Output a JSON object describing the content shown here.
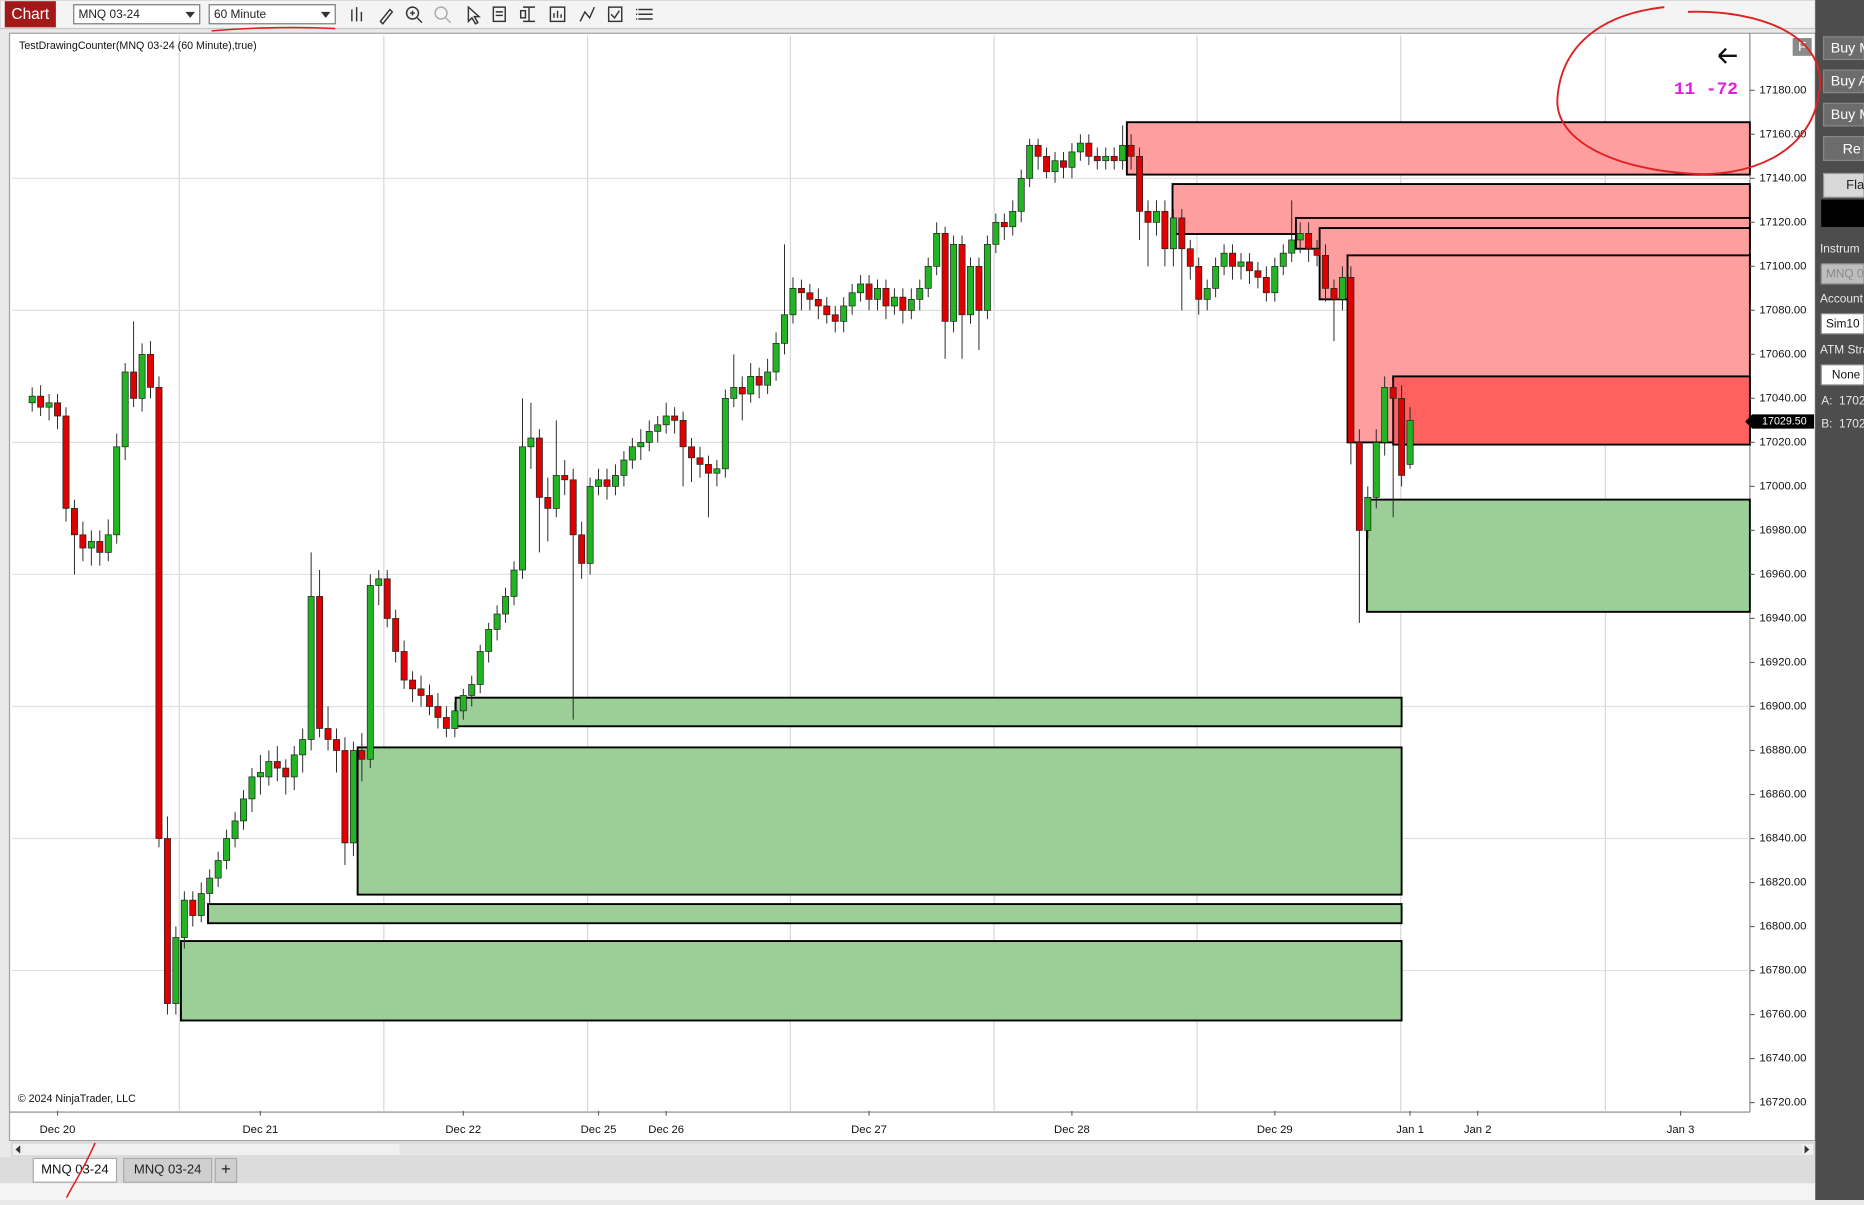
{
  "toolbar": {
    "chart_button": "Chart",
    "instrument": "MNQ 03-24",
    "interval": "60 Minute"
  },
  "chart_data": {
    "type": "candlestick",
    "title": "TestDrawingCounter(MNQ 03-24 (60 Minute),true)",
    "copyright": "© 2024 NinjaTrader, LLC",
    "counter_text": "11 -72",
    "f_button": "F",
    "up_color": "#22b422",
    "down_color": "#e00000",
    "xlim": [
      -2.4,
      203.2
    ],
    "ylim": [
      16716.22,
      17204.84
    ],
    "xticks": [
      {
        "value": 3,
        "label": "Dec 20"
      },
      {
        "value": 27,
        "label": "Dec 21"
      },
      {
        "value": 51,
        "label": "Dec 22"
      },
      {
        "value": 67,
        "label": "Dec 25"
      },
      {
        "value": 75,
        "label": "Dec 26"
      },
      {
        "value": 99,
        "label": "Dec 27"
      },
      {
        "value": 123,
        "label": "Dec 28"
      },
      {
        "value": 147,
        "label": "Dec 29"
      },
      {
        "value": 163,
        "label": "Jan 1"
      },
      {
        "value": 171,
        "label": "Jan 2"
      },
      {
        "value": 195,
        "label": "Jan 3"
      }
    ],
    "yticks": [
      {
        "value": 16720,
        "label": "16720.00"
      },
      {
        "value": 16740,
        "label": "16740.00"
      },
      {
        "value": 16760,
        "label": "16760.00"
      },
      {
        "value": 16780,
        "label": "16780.00"
      },
      {
        "value": 16800,
        "label": "16800.00"
      },
      {
        "value": 16820,
        "label": "16820.00"
      },
      {
        "value": 16840,
        "label": "16840.00"
      },
      {
        "value": 16860,
        "label": "16860.00"
      },
      {
        "value": 16880,
        "label": "16880.00"
      },
      {
        "value": 16900,
        "label": "16900.00"
      },
      {
        "value": 16920,
        "label": "16920.00"
      },
      {
        "value": 16940,
        "label": "16940.00"
      },
      {
        "value": 16960,
        "label": "16960.00"
      },
      {
        "value": 16980,
        "label": "16980.00"
      },
      {
        "value": 17000,
        "label": "17000.00"
      },
      {
        "value": 17020,
        "label": "17020.00"
      },
      {
        "value": 17040,
        "label": "17040.00"
      },
      {
        "value": 17060,
        "label": "17060.00"
      },
      {
        "value": 17080,
        "label": "17080.00"
      },
      {
        "value": 17100,
        "label": "17100.00"
      },
      {
        "value": 17120,
        "label": "17120.00"
      },
      {
        "value": 17140,
        "label": "17140.00"
      },
      {
        "value": 17160,
        "label": "17160.00"
      },
      {
        "value": 17180,
        "label": "17180.00"
      }
    ],
    "grid_x": [
      17.4,
      41.6,
      65.7,
      89.7,
      113.8,
      137.8,
      161.9,
      186.1
    ],
    "grid_y": [
      16780,
      16840,
      16900,
      16960,
      17020,
      17080,
      17140
    ],
    "last_price": {
      "value": 17029.5,
      "label": "17029.50"
    },
    "zones": [
      {
        "x0": 129.5,
        "x1": 203.2,
        "top": 17165.5,
        "bottom": 17141.7,
        "color": "#ff9e9e"
      },
      {
        "x0": 134.9,
        "x1": 203.2,
        "top": 17137.4,
        "bottom": 17114.7,
        "color": "#ff9e9e"
      },
      {
        "x0": 149.5,
        "x1": 203.2,
        "top": 17122,
        "bottom": 17108,
        "color": "#ff9e9e"
      },
      {
        "x0": 152.3,
        "x1": 203.2,
        "top": 17117.4,
        "bottom": 17085,
        "color": "#ff9e9e"
      },
      {
        "x0": 155.6,
        "x1": 203.2,
        "top": 17105,
        "bottom": 17020,
        "color": "#ff9e9e"
      },
      {
        "x0": 161,
        "x1": 203.2,
        "top": 17050,
        "bottom": 17019,
        "color": "#ff6060"
      },
      {
        "x0": 157.9,
        "x1": 203.2,
        "top": 16994,
        "bottom": 16943,
        "color": "#9ccf98"
      },
      {
        "x0": 50.1,
        "x1": 162,
        "top": 16904,
        "bottom": 16891,
        "color": "#9ccf98"
      },
      {
        "x0": 38.5,
        "x1": 162,
        "top": 16881.4,
        "bottom": 16814.5,
        "color": "#9ccf98"
      },
      {
        "x0": 20.8,
        "x1": 162,
        "top": 16810.2,
        "bottom": 16801.5,
        "color": "#9ccf98"
      },
      {
        "x0": 17.6,
        "x1": 162,
        "top": 16793.4,
        "bottom": 16757.3,
        "color": "#9ccf98"
      }
    ],
    "candles": [
      [
        17038,
        17045,
        17034,
        17041
      ],
      [
        17041,
        17046,
        17032,
        17036
      ],
      [
        17036,
        17042,
        17030,
        17038
      ],
      [
        17038,
        17042,
        17026,
        17032
      ],
      [
        17032,
        17036,
        16984,
        16990
      ],
      [
        16990,
        16994,
        16960,
        16978
      ],
      [
        16978,
        16984,
        16966,
        16972
      ],
      [
        16972,
        16980,
        16964,
        16975
      ],
      [
        16975,
        16980,
        16964,
        16970
      ],
      [
        16970,
        16985,
        16966,
        16978
      ],
      [
        16978,
        17024,
        16974,
        17018
      ],
      [
        17018,
        17056,
        17012,
        17052
      ],
      [
        17052,
        17075,
        17036,
        17040
      ],
      [
        17040,
        17065,
        17034,
        17060
      ],
      [
        17060,
        17066,
        17040,
        17045
      ],
      [
        17045,
        17050,
        16836,
        16840
      ],
      [
        16840,
        16850,
        16760,
        16765
      ],
      [
        16765,
        16800,
        16760,
        16795
      ],
      [
        16795,
        16816,
        16790,
        16812
      ],
      [
        16812,
        16816,
        16800,
        16805
      ],
      [
        16805,
        16820,
        16802,
        16815
      ],
      [
        16815,
        16826,
        16810,
        16822
      ],
      [
        16822,
        16834,
        16818,
        16830
      ],
      [
        16830,
        16844,
        16826,
        16840
      ],
      [
        16840,
        16852,
        16836,
        16848
      ],
      [
        16848,
        16862,
        16844,
        16858
      ],
      [
        16858,
        16872,
        16852,
        16868
      ],
      [
        16868,
        16878,
        16860,
        16870
      ],
      [
        16868,
        16880,
        16864,
        16875
      ],
      [
        16875,
        16882,
        16866,
        16872
      ],
      [
        16872,
        16876,
        16860,
        16868
      ],
      [
        16868,
        16882,
        16862,
        16878
      ],
      [
        16878,
        16890,
        16870,
        16885
      ],
      [
        16885,
        16970,
        16880,
        16950
      ],
      [
        16950,
        16962,
        16886,
        16890
      ],
      [
        16890,
        16900,
        16880,
        16885
      ],
      [
        16885,
        16890,
        16870,
        16880
      ],
      [
        16880,
        16886,
        16828,
        16838
      ],
      [
        16838,
        16884,
        16832,
        16880
      ],
      [
        16880,
        16888,
        16866,
        16876
      ],
      [
        16876,
        16960,
        16872,
        16955
      ],
      [
        16955,
        16962,
        16946,
        16958
      ],
      [
        16958,
        16962,
        16936,
        16940
      ],
      [
        16940,
        16944,
        16920,
        16925
      ],
      [
        16925,
        16930,
        16908,
        16912
      ],
      [
        16912,
        16916,
        16902,
        16908
      ],
      [
        16908,
        16914,
        16900,
        16905
      ],
      [
        16905,
        16910,
        16896,
        16900
      ],
      [
        16900,
        16906,
        16890,
        16895
      ],
      [
        16895,
        16900,
        16886,
        16890
      ],
      [
        16890,
        16902,
        16886,
        16898
      ],
      [
        16898,
        16908,
        16894,
        16905
      ],
      [
        16905,
        16914,
        16900,
        16910
      ],
      [
        16910,
        16928,
        16906,
        16925
      ],
      [
        16925,
        16938,
        16920,
        16935
      ],
      [
        16935,
        16946,
        16930,
        16942
      ],
      [
        16942,
        16954,
        16938,
        16950
      ],
      [
        16950,
        16966,
        16946,
        16962
      ],
      [
        16962,
        17040,
        16958,
        17018
      ],
      [
        17018,
        17038,
        17008,
        17022
      ],
      [
        17022,
        17026,
        16970,
        16995
      ],
      [
        16995,
        17004,
        16975,
        16990
      ],
      [
        16990,
        17030,
        16986,
        17005
      ],
      [
        17005,
        17012,
        16996,
        17003
      ],
      [
        17003,
        17008,
        16894,
        16978
      ],
      [
        16978,
        16984,
        16958,
        16965
      ],
      [
        16965,
        17004,
        16960,
        17000
      ],
      [
        17000,
        17008,
        16996,
        17003
      ],
      [
        17003,
        17008,
        16994,
        17000
      ],
      [
        17000,
        17010,
        16996,
        17005
      ],
      [
        17005,
        17016,
        17000,
        17012
      ],
      [
        17012,
        17022,
        17008,
        17018
      ],
      [
        17018,
        17026,
        17012,
        17020
      ],
      [
        17020,
        17030,
        17016,
        17025
      ],
      [
        17025,
        17032,
        17020,
        17028
      ],
      [
        17028,
        17038,
        17024,
        17032
      ],
      [
        17032,
        17036,
        17024,
        17030
      ],
      [
        17030,
        17034,
        17000,
        17018
      ],
      [
        17018,
        17022,
        17002,
        17013
      ],
      [
        17013,
        17018,
        17004,
        17010
      ],
      [
        17010,
        17014,
        16986,
        17006
      ],
      [
        17006,
        17012,
        17000,
        17008
      ],
      [
        17008,
        17044,
        17004,
        17040
      ],
      [
        17040,
        17060,
        17036,
        17045
      ],
      [
        17045,
        17050,
        17030,
        17042
      ],
      [
        17042,
        17056,
        17038,
        17050
      ],
      [
        17050,
        17054,
        17040,
        17046
      ],
      [
        17046,
        17058,
        17042,
        17052
      ],
      [
        17052,
        17070,
        17048,
        17065
      ],
      [
        17065,
        17110,
        17060,
        17078
      ],
      [
        17078,
        17095,
        17074,
        17090
      ],
      [
        17090,
        17094,
        17080,
        17088
      ],
      [
        17088,
        17092,
        17080,
        17085
      ],
      [
        17085,
        17090,
        17076,
        17082
      ],
      [
        17082,
        17086,
        17074,
        17078
      ],
      [
        17078,
        17082,
        17070,
        17075
      ],
      [
        17075,
        17086,
        17070,
        17082
      ],
      [
        17082,
        17092,
        17078,
        17088
      ],
      [
        17088,
        17096,
        17084,
        17092
      ],
      [
        17092,
        17096,
        17080,
        17085
      ],
      [
        17085,
        17094,
        17080,
        17090
      ],
      [
        17090,
        17094,
        17076,
        17082
      ],
      [
        17082,
        17090,
        17078,
        17086
      ],
      [
        17086,
        17090,
        17074,
        17080
      ],
      [
        17080,
        17090,
        17076,
        17085
      ],
      [
        17085,
        17094,
        17080,
        17090
      ],
      [
        17090,
        17104,
        17086,
        17100
      ],
      [
        17100,
        17120,
        17096,
        17115
      ],
      [
        17115,
        17118,
        17058,
        17075
      ],
      [
        17075,
        17114,
        17070,
        17110
      ],
      [
        17110,
        17114,
        17058,
        17078
      ],
      [
        17078,
        17104,
        17074,
        17100
      ],
      [
        17100,
        17104,
        17062,
        17080
      ],
      [
        17080,
        17114,
        17076,
        17110
      ],
      [
        17110,
        17124,
        17106,
        17120
      ],
      [
        17120,
        17124,
        17112,
        17118
      ],
      [
        17118,
        17130,
        17114,
        17125
      ],
      [
        17125,
        17144,
        17120,
        17140
      ],
      [
        17140,
        17158,
        17136,
        17155
      ],
      [
        17155,
        17158,
        17144,
        17150
      ],
      [
        17150,
        17154,
        17140,
        17143
      ],
      [
        17143,
        17152,
        17138,
        17148
      ],
      [
        17148,
        17152,
        17140,
        17145
      ],
      [
        17145,
        17156,
        17140,
        17152
      ],
      [
        17152,
        17160,
        17148,
        17156
      ],
      [
        17156,
        17160,
        17146,
        17150
      ],
      [
        17150,
        17154,
        17144,
        17148
      ],
      [
        17148,
        17154,
        17144,
        17150
      ],
      [
        17150,
        17154,
        17144,
        17148
      ],
      [
        17148,
        17164,
        17144,
        17155
      ],
      [
        17155,
        17160,
        17144,
        17150
      ],
      [
        17150,
        17154,
        17112,
        17125
      ],
      [
        17125,
        17130,
        17100,
        17120
      ],
      [
        17120,
        17130,
        17114,
        17125
      ],
      [
        17125,
        17130,
        17100,
        17108
      ],
      [
        17108,
        17126,
        17100,
        17122
      ],
      [
        17122,
        17126,
        17080,
        17108
      ],
      [
        17108,
        17112,
        17094,
        17100
      ],
      [
        17100,
        17104,
        17078,
        17085
      ],
      [
        17085,
        17094,
        17080,
        17090
      ],
      [
        17090,
        17104,
        17086,
        17100
      ],
      [
        17100,
        17110,
        17096,
        17106
      ],
      [
        17106,
        17110,
        17094,
        17100
      ],
      [
        17100,
        17106,
        17094,
        17102
      ],
      [
        17102,
        17106,
        17092,
        17098
      ],
      [
        17098,
        17102,
        17090,
        17095
      ],
      [
        17095,
        17100,
        17084,
        17088
      ],
      [
        17088,
        17104,
        17084,
        17100
      ],
      [
        17100,
        17110,
        17096,
        17106
      ],
      [
        17106,
        17130,
        17102,
        17112
      ],
      [
        17112,
        17120,
        17106,
        17115
      ],
      [
        17115,
        17120,
        17102,
        17108
      ],
      [
        17108,
        17112,
        17100,
        17105
      ],
      [
        17105,
        17110,
        17084,
        17090
      ],
      [
        17090,
        17094,
        17066,
        17085
      ],
      [
        17085,
        17100,
        17080,
        17095
      ],
      [
        17095,
        17100,
        17010,
        17020
      ],
      [
        17020,
        17026,
        16938,
        16980
      ],
      [
        16980,
        17000,
        16976,
        16995
      ],
      [
        16995,
        17026,
        16990,
        17020
      ],
      [
        17020,
        17050,
        17014,
        17045
      ],
      [
        17045,
        17048,
        16986,
        17040
      ],
      [
        17040,
        17046,
        17000,
        17005
      ],
      [
        17010,
        17036,
        17008,
        17030
      ]
    ]
  },
  "tabs": {
    "items": [
      "MNQ 03-24",
      "MNQ 03-24"
    ],
    "add": "+"
  },
  "side_panel": {
    "buttons": [
      "Buy M",
      "Buy A",
      "Buy M",
      "Re"
    ],
    "flatten": "Fla",
    "instrument_label": "Instrum",
    "instrument": "MNQ 0",
    "account_label": "Account",
    "account": "Sim10",
    "atm_label": "ATM Stra",
    "atm": "None",
    "ask_label": "A:",
    "ask": "1702",
    "bid_label": "B:",
    "bid": "1702"
  }
}
